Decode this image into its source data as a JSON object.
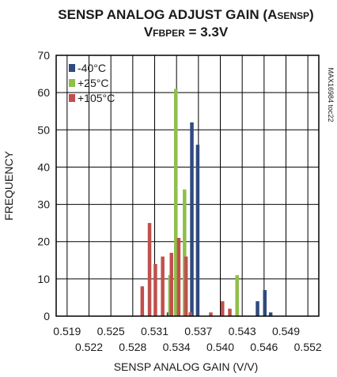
{
  "chart_data": {
    "type": "bar",
    "title_line1": "SENSP ANALOG ADJUST GAIN (A",
    "title_line1_sub": "SENSP",
    "title_line1_end": ")",
    "title_line2": "V",
    "title_line2_sub": "FBPER",
    "title_line2_end": " = 3.3V",
    "xlabel": "SENSP ANALOG GAIN (V/V)",
    "ylabel": "FREQUENCY",
    "part_code": "MAX16984 toc22",
    "xlim": [
      0.5175,
      0.5535
    ],
    "ylim": [
      0,
      70
    ],
    "yticks": [
      "0",
      "10",
      "20",
      "30",
      "40",
      "50",
      "60",
      "70"
    ],
    "xticks_upper": [
      "0.519",
      "0.525",
      "0.531",
      "0.537",
      "0.543",
      "0.549"
    ],
    "xticks_lower": [
      "0.522",
      "0.528",
      "0.534",
      "0.540",
      "0.546",
      "0.552"
    ],
    "grid": true,
    "legend_position": "top-left",
    "series": [
      {
        "name": "-40°C",
        "color": "#2e4a7f",
        "points": [
          {
            "x": 0.5329,
            "y": 1
          },
          {
            "x": 0.5361,
            "y": 52
          },
          {
            "x": 0.5369,
            "y": 46
          },
          {
            "x": 0.5451,
            "y": 4
          },
          {
            "x": 0.5461,
            "y": 7
          },
          {
            "x": 0.5469,
            "y": 1
          }
        ]
      },
      {
        "name": "+25°C",
        "color": "#8fbf4a",
        "points": [
          {
            "x": 0.5331,
            "y": 11
          },
          {
            "x": 0.5339,
            "y": 61
          },
          {
            "x": 0.5351,
            "y": 34
          },
          {
            "x": 0.5423,
            "y": 11
          }
        ]
      },
      {
        "name": "+105°C",
        "color": "#c0504d",
        "points": [
          {
            "x": 0.5293,
            "y": 8
          },
          {
            "x": 0.5303,
            "y": 25
          },
          {
            "x": 0.5311,
            "y": 14
          },
          {
            "x": 0.5321,
            "y": 16
          },
          {
            "x": 0.5333,
            "y": 17
          },
          {
            "x": 0.5343,
            "y": 21
          },
          {
            "x": 0.5353,
            "y": 16
          },
          {
            "x": 0.5359,
            "y": 1
          },
          {
            "x": 0.5387,
            "y": 1
          },
          {
            "x": 0.5403,
            "y": 4
          },
          {
            "x": 0.5413,
            "y": 2
          }
        ]
      }
    ]
  }
}
